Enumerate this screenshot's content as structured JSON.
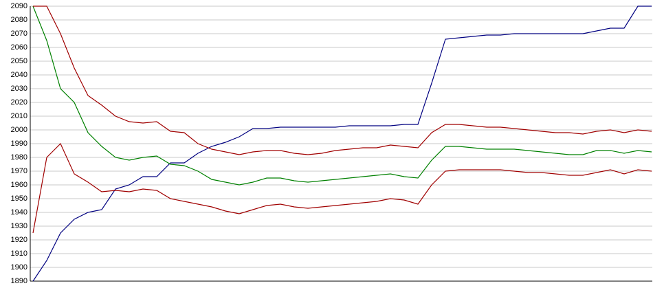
{
  "chart_data": {
    "type": "line",
    "categories": [
      null,
      null,
      null,
      null,
      null,
      null,
      null,
      null,
      null,
      null,
      null,
      null,
      null,
      null,
      null,
      null,
      null,
      null,
      null,
      null,
      null,
      null,
      null,
      null,
      null,
      null,
      null,
      null,
      null,
      null,
      null,
      null,
      null,
      null,
      null,
      null,
      null,
      null,
      null,
      null,
      null,
      null,
      null,
      null,
      null,
      null
    ],
    "series": [
      {
        "color": "#000080",
        "values": [
          1890,
          1905,
          1925,
          1935,
          1940,
          1942,
          1957,
          1960,
          1966,
          1966,
          1976,
          1976,
          1983,
          1988,
          1991,
          1995,
          2001,
          2001,
          2002,
          2002,
          2002,
          2002,
          2002,
          2003,
          2003,
          2003,
          2003,
          2004,
          2004,
          2034,
          2066,
          2067,
          2068,
          2069,
          2069,
          2070,
          2070,
          2070,
          2070,
          2070,
          2070,
          2072,
          2074,
          2074,
          2090,
          2090
        ]
      },
      {
        "color": "#008000",
        "values": [
          2090,
          2065,
          2030,
          2020,
          1998,
          1988,
          1980,
          1978,
          1980,
          1981,
          1975,
          1974,
          1970,
          1964,
          1962,
          1960,
          1962,
          1965,
          1965,
          1963,
          1962,
          1963,
          1964,
          1965,
          1966,
          1967,
          1968,
          1966,
          1965,
          1978,
          1988,
          1988,
          1987,
          1986,
          1986,
          1986,
          1985,
          1984,
          1983,
          1982,
          1982,
          1985,
          1985,
          1983,
          1985,
          1984
        ]
      },
      {
        "color": "#a00000",
        "values": [
          2090,
          2090,
          2070,
          2045,
          2025,
          2018,
          2010,
          2006,
          2005,
          2006,
          1999,
          1998,
          1990,
          1986,
          1984,
          1982,
          1984,
          1985,
          1985,
          1983,
          1982,
          1983,
          1985,
          1986,
          1987,
          1987,
          1989,
          1988,
          1987,
          1998,
          2004,
          2004,
          2003,
          2002,
          2002,
          2001,
          2000,
          1999,
          1998,
          1998,
          1997,
          1999,
          2000,
          1998,
          2000,
          1999
        ]
      },
      {
        "color": "#a00000",
        "values": [
          1925,
          1980,
          1990,
          1968,
          1962,
          1955,
          1956,
          1955,
          1957,
          1956,
          1950,
          1948,
          1946,
          1944,
          1941,
          1939,
          1942,
          1945,
          1946,
          1944,
          1943,
          1944,
          1945,
          1946,
          1947,
          1948,
          1950,
          1949,
          1946,
          1960,
          1970,
          1971,
          1971,
          1971,
          1971,
          1970,
          1969,
          1969,
          1968,
          1967,
          1967,
          1969,
          1971,
          1968,
          1971,
          1970
        ]
      }
    ],
    "ylim": [
      1890,
      2090
    ],
    "yticks": [
      1890,
      1900,
      1910,
      1920,
      1930,
      1940,
      1950,
      1960,
      1970,
      1980,
      1990,
      2000,
      2010,
      2020,
      2030,
      2040,
      2050,
      2060,
      2070,
      2080,
      2090
    ],
    "grid": true
  }
}
